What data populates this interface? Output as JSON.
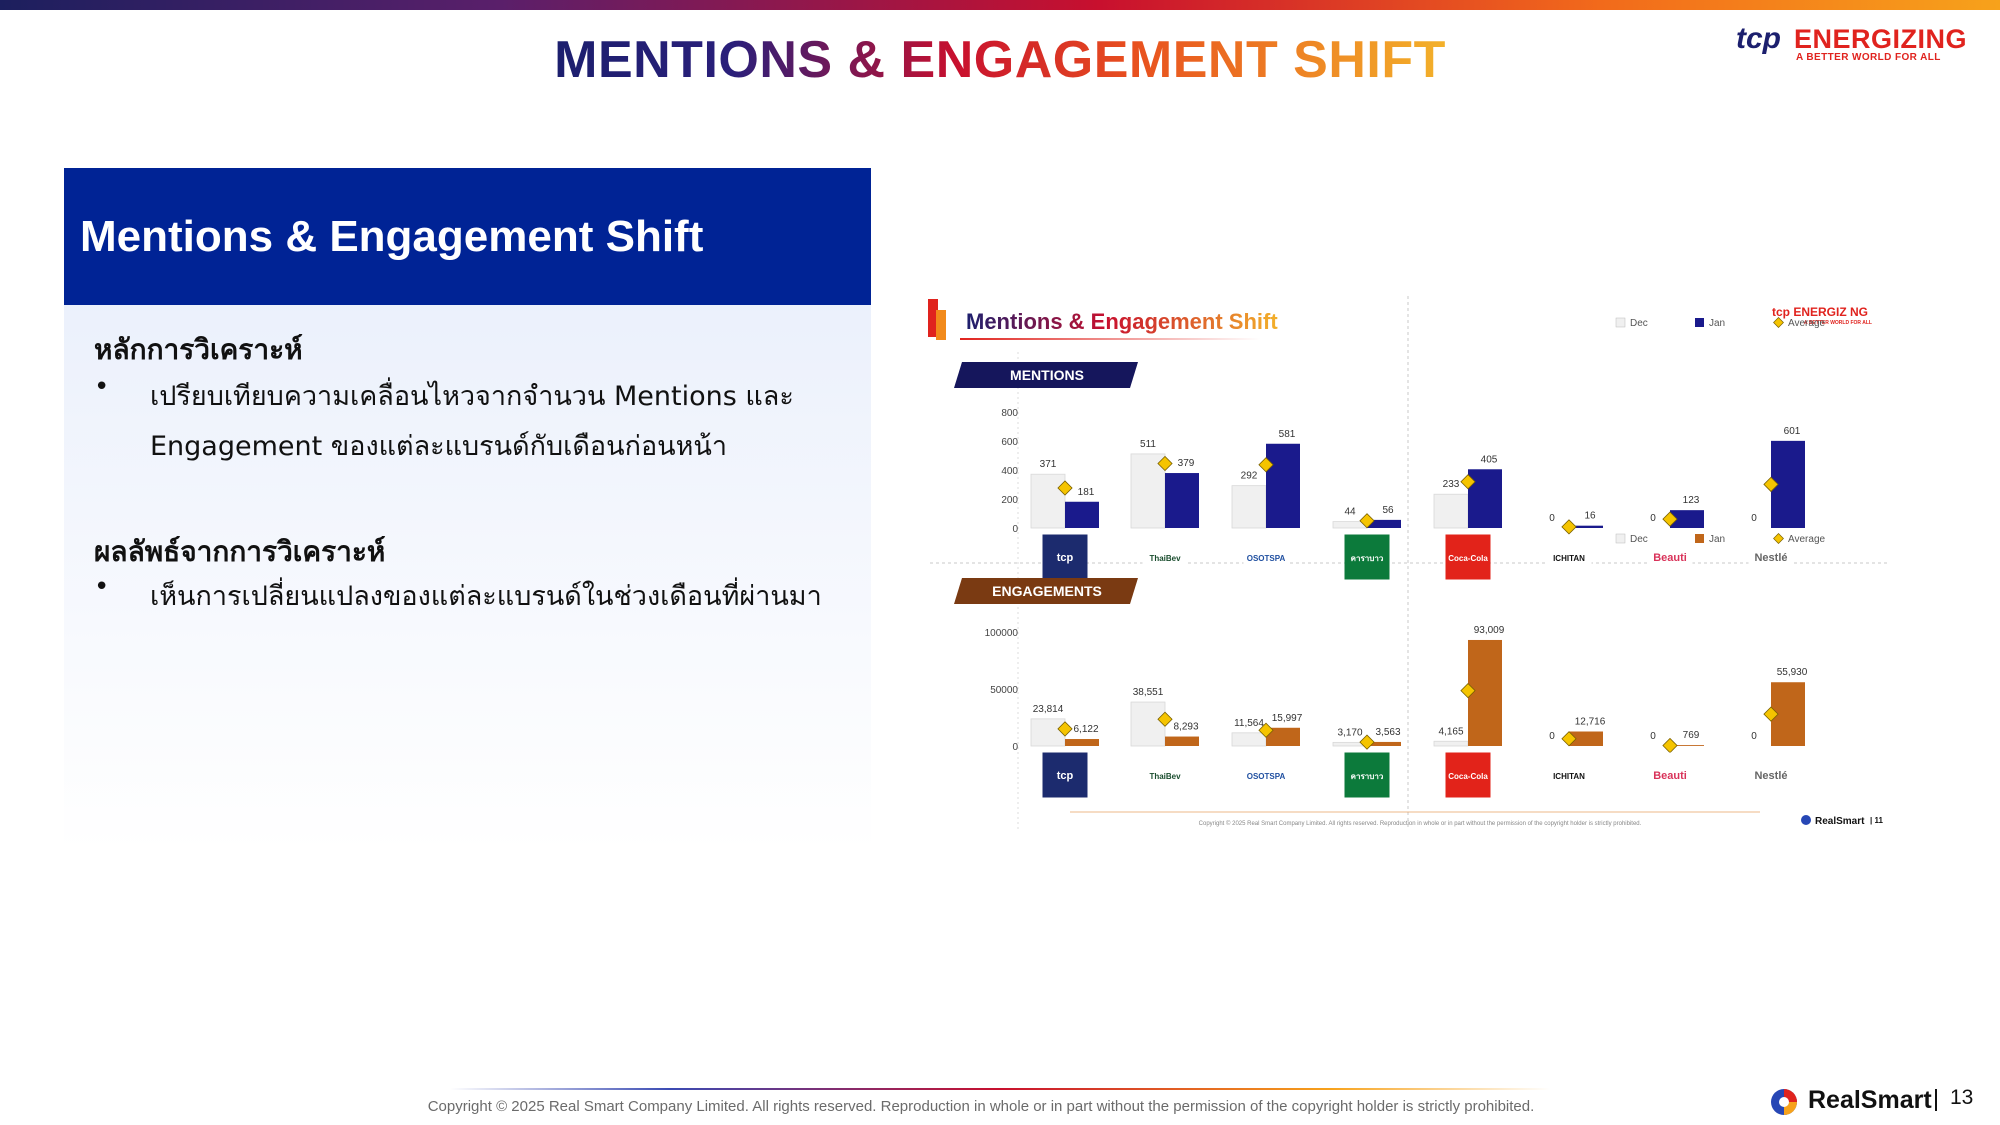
{
  "title": "MENTIONS & ENGAGEMENT SHIFT",
  "brand": {
    "tcp": "tcp",
    "name": "ENERGIZING",
    "tagline": "A BETTER WORLD FOR ALL"
  },
  "left": {
    "header": "Mentions & Engagement Shift",
    "section1_title": "หลักการวิเคราะห์",
    "section1_bullet": "เปรียบเทียบความเคลื่อนไหวจากจำนวน Mentions และ Engagement ของแต่ละแบรนด์กับเดือนก่อนหน้า",
    "section2_title": "ผลลัพธ์จากการวิเคราะห์",
    "section2_bullet": "เห็นการเปลี่ยนแปลงของแต่ละแบรนด์ในช่วงเดือนที่ผ่านมา",
    "bullet_symbol": "•"
  },
  "inner_slide": {
    "title": "Mentions & Engagement Shift",
    "brand_small": "tcp ENERGIZ NG",
    "brand_small_tag": "A BETTER WORLD FOR ALL",
    "copyright": "Copyright © 2025 Real Smart Company Limited. All rights reserved. Reproduction in whole or in part without the permission of the copyright holder is strictly prohibited.",
    "realsmart": "RealSmart",
    "page": "11"
  },
  "chart_data": [
    {
      "type": "bar",
      "title": "MENTIONS",
      "categories": [
        "tcp",
        "ThaiBev",
        "OSOTSPA",
        "คาราบาว",
        "Coca-Cola",
        "ICHITAN",
        "Beauti",
        "Nestlé"
      ],
      "series": [
        {
          "name": "Dec",
          "values": [
            371,
            511,
            292,
            44,
            233,
            0,
            0,
            0
          ]
        },
        {
          "name": "Jan",
          "values": [
            181,
            379,
            581,
            56,
            405,
            16,
            123,
            601
          ]
        },
        {
          "name": "Average",
          "values": [
            276,
            445,
            436.5,
            50,
            319,
            8,
            61.5,
            300.5
          ]
        }
      ],
      "ylim": [
        0,
        800
      ],
      "yticks": [
        "0",
        "200",
        "400",
        "600",
        "800"
      ],
      "labels": {
        "dec": [
          "371",
          "511",
          "292",
          "44",
          "233",
          "0",
          "0",
          "0"
        ],
        "jan": [
          "181",
          "379",
          "581",
          "56",
          "405",
          "16",
          "123",
          "601"
        ]
      },
      "colors": {
        "dec": "#f0f0f0",
        "jan": "#1a1a8c",
        "average": "#f5c400"
      },
      "legend": "top-right"
    },
    {
      "type": "bar",
      "title": "ENGAGEMENTS",
      "categories": [
        "tcp",
        "ThaiBev",
        "OSOTSPA",
        "คาราบาว",
        "Coca-Cola",
        "ICHITAN",
        "Beauti",
        "Nestlé"
      ],
      "series": [
        {
          "name": "Dec",
          "values": [
            23814,
            38551,
            11564,
            3170,
            4165,
            0,
            0,
            0
          ]
        },
        {
          "name": "Jan",
          "values": [
            6122,
            8293,
            15997,
            3563,
            93009,
            12716,
            769,
            55930
          ]
        },
        {
          "name": "Average",
          "values": [
            14968,
            23422,
            13780.5,
            3366.5,
            48587,
            6358,
            384.5,
            27965
          ]
        }
      ],
      "ylim": [
        0,
        100000
      ],
      "yticks": [
        "0",
        "50000",
        "100000"
      ],
      "labels": {
        "dec": [
          "23,814",
          "38,551",
          "11,564",
          "3,170",
          "4,165",
          "0",
          "0",
          "0"
        ],
        "jan": [
          "6,122",
          "8,293",
          "15,997",
          "3,563",
          "93,009",
          "12,716",
          "769",
          "55,930"
        ]
      },
      "colors": {
        "dec": "#f0f0f0",
        "jan": "#c0661a",
        "average": "#f5c400"
      },
      "legend": "top-right"
    }
  ],
  "logos": [
    {
      "text": "tcp",
      "bg": "#1c2b6e",
      "fg": "#ffffff"
    },
    {
      "text": "ThaiBev",
      "bg": "#ffffff",
      "fg": "#1a4d2e"
    },
    {
      "text": "OSOTSPA",
      "bg": "#ffffff",
      "fg": "#1f4fa0"
    },
    {
      "text": "คาราบาว",
      "bg": "#0c7a3b",
      "fg": "#ffffff"
    },
    {
      "text": "Coca-Cola",
      "bg": "#e2231a",
      "fg": "#ffffff"
    },
    {
      "text": "ICHITAN",
      "bg": "#ffffff",
      "fg": "#111111"
    },
    {
      "text": "Beauti",
      "bg": "#ffffff",
      "fg": "#d9335a"
    },
    {
      "text": "Nestlé",
      "bg": "#ffffff",
      "fg": "#666666"
    }
  ],
  "footer": {
    "copyright": "Copyright © 2025 Real Smart Company Limited. All rights reserved. Reproduction in whole  or in part without the permission of the copyright holder is strictly prohibited.",
    "realsmart": "RealSmart",
    "page_number": "13"
  }
}
